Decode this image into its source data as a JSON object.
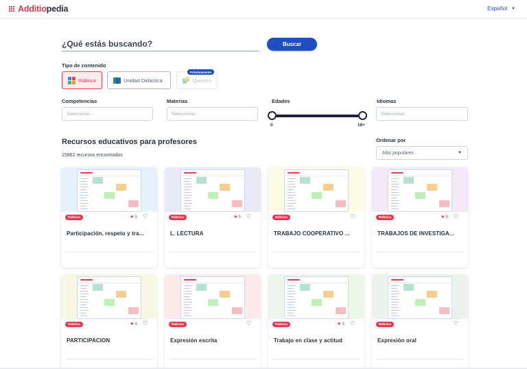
{
  "header": {
    "logo_red": "Additio",
    "logo_dark": "pedia",
    "language": "Español"
  },
  "search": {
    "placeholder": "¿Qué estás buscando?",
    "button_label": "Buscar"
  },
  "content_type": {
    "label": "Tipo de contenido",
    "options": [
      {
        "label": "Rúbrica",
        "selected": true
      },
      {
        "label": "Unidad Didáctica",
        "selected": false
      },
      {
        "label": "Quizzes",
        "selected": false,
        "badge": "Próximamente"
      }
    ]
  },
  "filters": {
    "competencias": {
      "label": "Competencias",
      "placeholder": "Seleccionar..."
    },
    "materias": {
      "label": "Materias",
      "placeholder": "Seleccionar..."
    },
    "edades": {
      "label": "Edades",
      "min": "0",
      "max": "18+"
    },
    "idiomas": {
      "label": "Idiomas",
      "placeholder": "Seleccionar..."
    }
  },
  "results": {
    "title": "Recursos educativos para profesores",
    "count": "15862 recursos encontrados",
    "sort_label": "Ordenar por",
    "sort_value": "Más populares"
  },
  "colors": {
    "brand_red": "#e53950",
    "primary_blue": "#1e4fc3"
  },
  "cards": [
    {
      "title": "Participación, respeto y tra...",
      "tag": "Rúbrica",
      "rating": "5",
      "bg": "#e4f2fc"
    },
    {
      "title": "L. LECTURA",
      "tag": "Rúbrica",
      "rating": "5",
      "bg": "#e7eaf5"
    },
    {
      "title": "TRABAJO COOPERATIVO ...",
      "tag": "Rúbrica",
      "rating": "",
      "bg": "#fbfbe6"
    },
    {
      "title": "TRABAJOS DE INVESTIGA...",
      "tag": "Rúbrica",
      "rating": "5",
      "bg": "#f3e9f7"
    },
    {
      "title": "PARTICIPACION",
      "tag": "Rúbrica",
      "rating": "4",
      "bg": "#f6f8e3"
    },
    {
      "title": "Expresión escrita",
      "tag": "Rúbrica",
      "rating": "",
      "bg": "#fce9ea"
    },
    {
      "title": "Trabajo en clase y actitud",
      "tag": "Rúbrica",
      "rating": "5",
      "bg": "#eef6e9"
    },
    {
      "title": "Expresión oral",
      "tag": "Rúbrica",
      "rating": "",
      "bg": "#edf3ec"
    }
  ]
}
